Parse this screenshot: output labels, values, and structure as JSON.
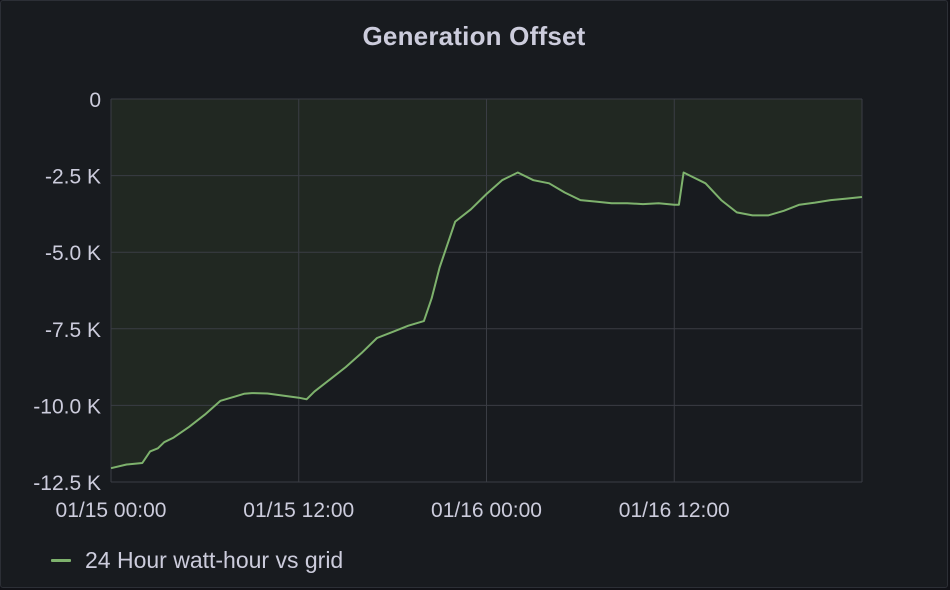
{
  "panel": {
    "title": "Generation Offset"
  },
  "chart_data": {
    "type": "area",
    "title": "Generation Offset",
    "xlabel": "",
    "ylabel": "",
    "series_color": "#7eb26d",
    "fill_color": "#222a22",
    "grid": true,
    "legend_position": "bottom-left",
    "x_ticks": [
      "01/15 00:00",
      "01/15 12:00",
      "01/16 00:00",
      "01/16 12:00"
    ],
    "y_ticks": [
      "0",
      "-2.5 K",
      "-5.0 K",
      "-7.5 K",
      "-10.0 K",
      "-12.5 K"
    ],
    "x_range_hours": [
      0,
      48
    ],
    "ylim": [
      -12500,
      0
    ],
    "series": [
      {
        "name": "24 Hour watt-hour vs grid",
        "x_hours": [
          0,
          1,
          2,
          2.5,
          3,
          3.4,
          4,
          5,
          6,
          7,
          8,
          8.5,
          9,
          10,
          11,
          12,
          12.5,
          13,
          14,
          15,
          16,
          17,
          18,
          19,
          20,
          20.5,
          21,
          22,
          23,
          24,
          25,
          26,
          27,
          28,
          29,
          30,
          31,
          32,
          33,
          34,
          35,
          36,
          36.3,
          36.6,
          37,
          38,
          39,
          40,
          41,
          42,
          43,
          44,
          45,
          46,
          47,
          48
        ],
        "values": [
          -12050,
          -11930,
          -11880,
          -11500,
          -11400,
          -11200,
          -11050,
          -10700,
          -10300,
          -9850,
          -9700,
          -9620,
          -9600,
          -9610,
          -9680,
          -9750,
          -9800,
          -9550,
          -9150,
          -8750,
          -8300,
          -7800,
          -7600,
          -7400,
          -7250,
          -6500,
          -5500,
          -4000,
          -3600,
          -3100,
          -2650,
          -2400,
          -2650,
          -2750,
          -3050,
          -3300,
          -3350,
          -3400,
          -3400,
          -3430,
          -3400,
          -3450,
          -3450,
          -2400,
          -2500,
          -2750,
          -3300,
          -3700,
          -3800,
          -3800,
          -3650,
          -3450,
          -3380,
          -3300,
          -3250,
          -3200
        ]
      }
    ]
  }
}
